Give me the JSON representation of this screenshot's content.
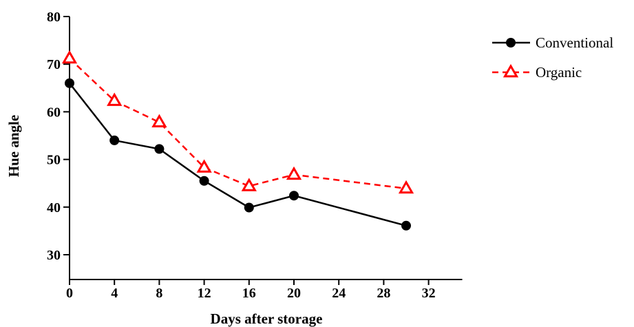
{
  "chart_data": {
    "type": "line",
    "title": "",
    "xlabel": "Days after storage",
    "ylabel": "Hue angle",
    "xlim": [
      0,
      35
    ],
    "ylim": [
      25,
      80
    ],
    "xticks": [
      0,
      4,
      8,
      12,
      16,
      20,
      24,
      28,
      32
    ],
    "yticks": [
      30,
      40,
      50,
      60,
      70,
      80
    ],
    "grid": false,
    "legend_position": "top-right",
    "series": [
      {
        "name": "Conventional",
        "color": "#000000",
        "line_style": "solid",
        "marker": "circle",
        "x": [
          0,
          4,
          8,
          12,
          16,
          20,
          30
        ],
        "y": [
          66.0,
          54.0,
          52.2,
          45.5,
          39.9,
          42.4,
          36.1
        ]
      },
      {
        "name": "Organic",
        "color": "#ff0000",
        "line_style": "dashed",
        "marker": "triangle",
        "x": [
          0,
          4,
          8,
          12,
          16,
          20,
          30
        ],
        "y": [
          71.2,
          62.3,
          57.8,
          48.3,
          44.4,
          46.8,
          43.9
        ]
      }
    ]
  }
}
